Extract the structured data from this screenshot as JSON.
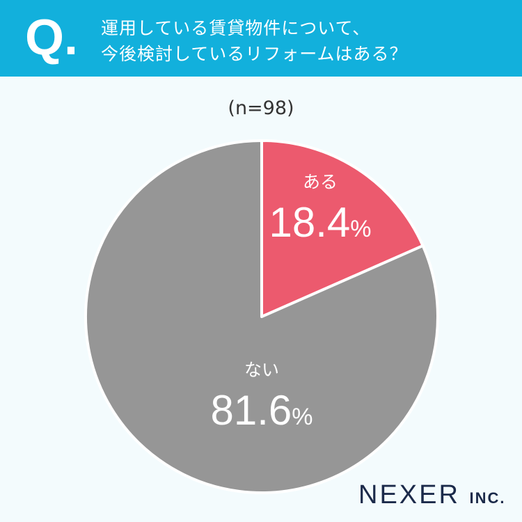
{
  "header": {
    "q_mark": "Q.",
    "question_line1": "運用している賃貸物件について、",
    "question_line2": "今後検討しているリフォームはある？"
  },
  "sample": "(n=98)",
  "chart_data": {
    "type": "pie",
    "categories": [
      "ある",
      "ない"
    ],
    "values": [
      18.4,
      81.6
    ],
    "labels": [
      "18.4",
      "81.6"
    ],
    "unit": "%",
    "colors": [
      "#ec5a6e",
      "#969696"
    ],
    "start": "top",
    "direction": "clockwise"
  },
  "logo": {
    "name": "NEXER",
    "suffix": "INC."
  }
}
